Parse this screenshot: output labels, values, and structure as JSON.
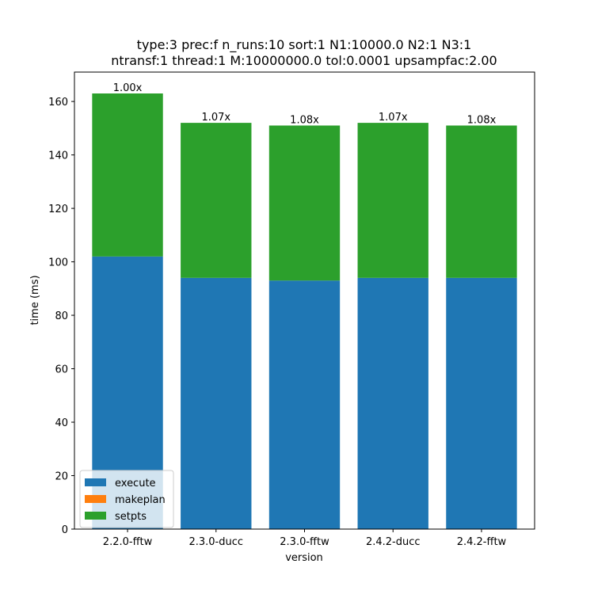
{
  "chart_data": {
    "type": "bar",
    "stacked": true,
    "title_lines": [
      "type:3 prec:f n_runs:10 sort:1 N1:10000.0 N2:1 N3:1",
      "ntransf:1 thread:1 M:10000000.0 tol:0.0001 upsampfac:2.00"
    ],
    "xlabel": "version",
    "ylabel": "time (ms)",
    "ylim": [
      0,
      171
    ],
    "yticks": [
      0,
      20,
      40,
      60,
      80,
      100,
      120,
      140,
      160
    ],
    "categories": [
      "2.2.0-fftw",
      "2.3.0-ducc",
      "2.3.0-fftw",
      "2.4.2-ducc",
      "2.4.2-fftw"
    ],
    "series": [
      {
        "name": "execute",
        "color": "#1f77b4",
        "values": [
          102,
          94,
          93,
          94,
          94
        ]
      },
      {
        "name": "makeplan",
        "color": "#ff7f0e",
        "values": [
          0,
          0,
          0,
          0,
          0
        ]
      },
      {
        "name": "setpts",
        "color": "#2ca02c",
        "values": [
          61,
          58,
          58,
          58,
          57
        ]
      }
    ],
    "bar_labels": [
      "1.00x",
      "1.07x",
      "1.08x",
      "1.07x",
      "1.08x"
    ],
    "legend_position": "lower-left",
    "grid": false
  }
}
